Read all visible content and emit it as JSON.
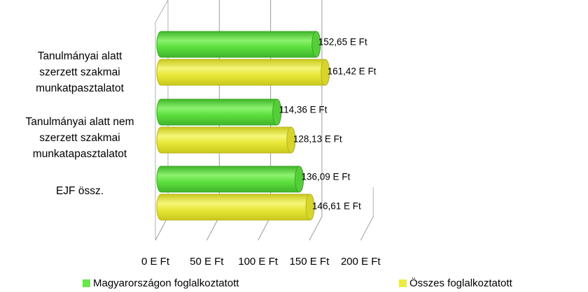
{
  "chart_data": {
    "type": "bar",
    "orientation": "horizontal",
    "style": "3d-cylinder",
    "categories": [
      "Tanulmányai alatt szerzett szakmai munkatpasztalatot",
      "Tanulmányai alatt nem szerzett szakmai munkatapasztalatot",
      "EJF össz."
    ],
    "category_lines": [
      [
        "Tanulmányai alatt",
        "szerzett szakmai",
        "munkatpasztalatot"
      ],
      [
        "Tanulmányai alatt nem",
        "szerzett szakmai",
        "munkatapasztalatot"
      ],
      [
        "EJF össz."
      ]
    ],
    "series": [
      {
        "name": "Magyarországon foglalkoztatott",
        "color": "#66e84a",
        "values": [
          152.65,
          114.36,
          136.09
        ],
        "labels": [
          "152,65 E Ft",
          "114,36 E Ft",
          "136,09 E Ft"
        ]
      },
      {
        "name": "Összes foglalkoztatott",
        "color": "#ecec40",
        "values": [
          161.42,
          128.13,
          146.61
        ],
        "labels": [
          "161,42 E Ft",
          "128,13 E Ft",
          "146,61 E Ft"
        ]
      }
    ],
    "xlim": [
      0,
      200
    ],
    "x_ticks": [
      0,
      50,
      100,
      150,
      200
    ],
    "x_tick_labels": [
      "0 E Ft",
      "50 E Ft",
      "100 E Ft",
      "150 E Ft",
      "200 E Ft"
    ],
    "grid": true,
    "legend_position": "bottom"
  }
}
